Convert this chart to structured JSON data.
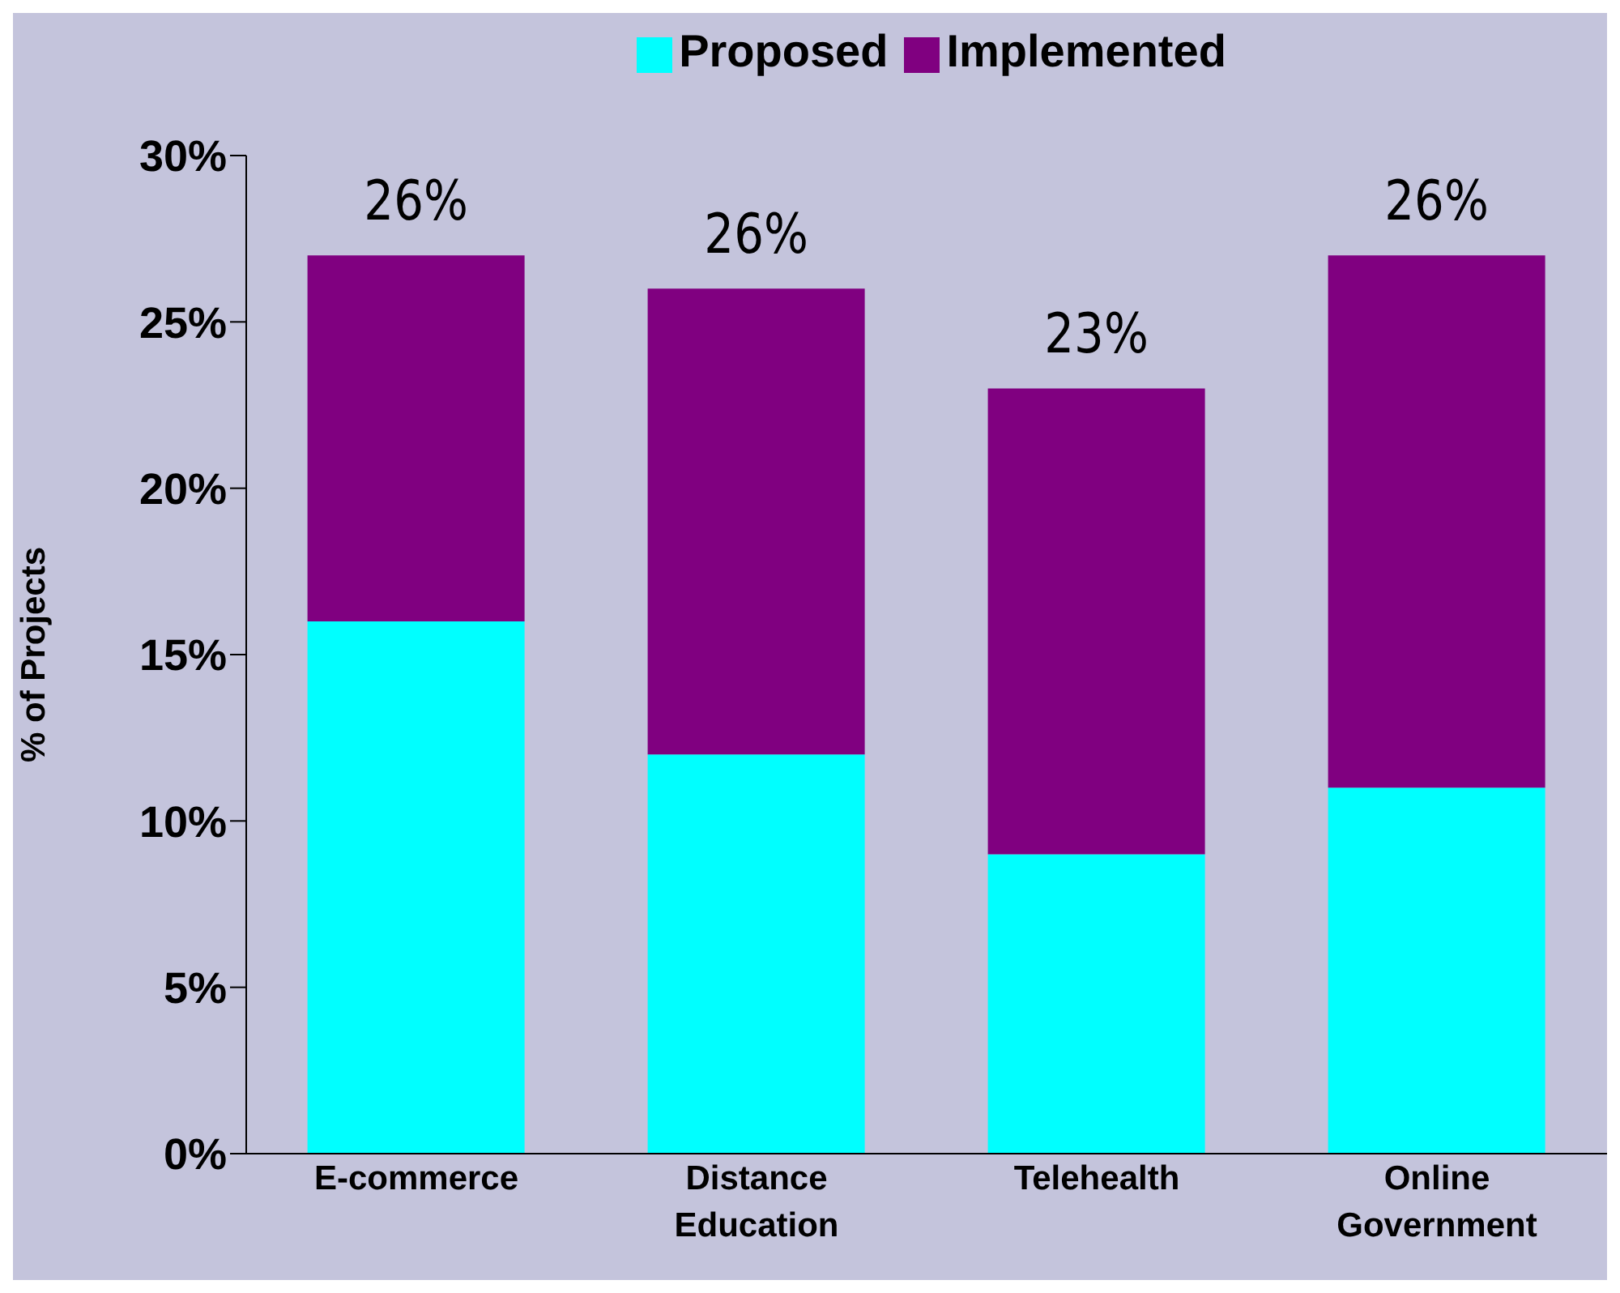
{
  "chart_data": {
    "type": "bar",
    "stacked": true,
    "ylabel": "% of Projects",
    "categories": [
      "E-commerce",
      "Distance Education",
      "Telehealth",
      "Online Government"
    ],
    "series": [
      {
        "name": "Proposed",
        "color": "#00ffff",
        "values": [
          16,
          12,
          9,
          11
        ]
      },
      {
        "name": "Implemented",
        "color": "#800080",
        "values": [
          11,
          14,
          14,
          16
        ]
      }
    ],
    "ylim": [
      0,
      30
    ],
    "yticks": [
      {
        "value": 0,
        "label": "0%"
      },
      {
        "value": 5,
        "label": "5%"
      },
      {
        "value": 10,
        "label": "10%"
      },
      {
        "value": 15,
        "label": "15%"
      },
      {
        "value": 20,
        "label": "20%"
      },
      {
        "value": 25,
        "label": "25%"
      },
      {
        "value": 30,
        "label": "30%"
      }
    ],
    "totals": [
      "26%",
      "26%",
      "23%",
      "26%"
    ],
    "legend": "top"
  }
}
